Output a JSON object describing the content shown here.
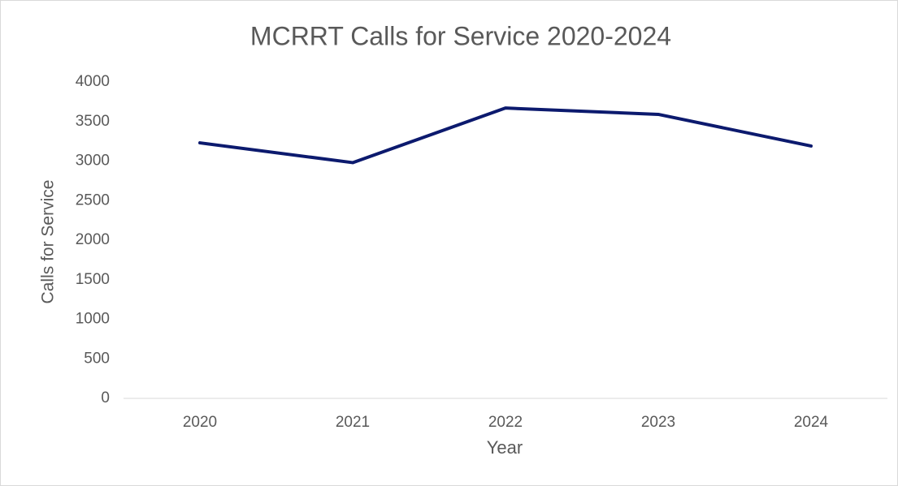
{
  "chart_data": {
    "type": "line",
    "title": "MCRRT Calls for Service 2020-2024",
    "x_label": "Year",
    "y_label": "Calls for Service",
    "categories": [
      "2020",
      "2021",
      "2022",
      "2023",
      "2024"
    ],
    "series": [
      {
        "name": "Calls for Service",
        "color": "#0c1a6e",
        "values": [
          3230,
          2980,
          3670,
          3590,
          3190
        ]
      }
    ],
    "ylim": [
      0,
      4000
    ],
    "yticks": [
      0,
      500,
      1000,
      1500,
      2000,
      2500,
      3000,
      3500,
      4000
    ],
    "grid": false
  }
}
